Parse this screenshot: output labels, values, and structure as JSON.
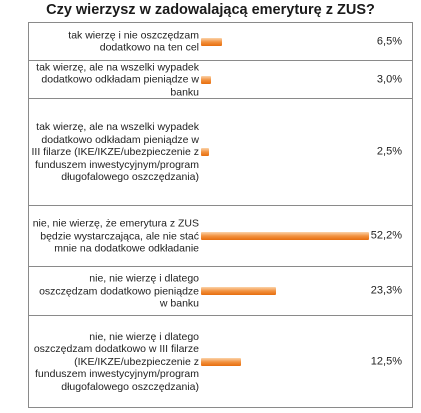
{
  "chart_data": {
    "type": "bar",
    "orientation": "horizontal",
    "title": "Czy wierzysz w zadowalającą emeryturę z ZUS?",
    "unit": "%",
    "xlim": [
      0,
      60
    ],
    "grid": false,
    "categories": [
      "tak wierzę i nie oszczędzam dodatkowo na ten cel",
      "tak wierzę, ale na wszelki wypadek dodatkowo odkładam pieniądze w banku",
      "tak wierzę, ale na wszelki wypadek dodatkowo odkładam pieniądze w III filarze (IKE/IKZE/ubezpieczenie z funduszem inwestycyjnym/program długofalowego oszczędzania)",
      "nie, nie wierzę, że emerytura z ZUS będzie wystarczająca, ale nie stać mnie na dodatkowe odkładanie",
      "nie, nie wierzę i dlatego oszczędzam dodatkowo pieniądze w banku",
      "nie, nie wierzę i dlatego oszczędzam dodatkowo w III filarze (IKE/IKZE/ubezpieczenie z funduszem inwestycyjnym/program długofalowego oszczędzania)"
    ],
    "values": [
      6.5,
      3.0,
      2.5,
      52.2,
      23.3,
      12.5
    ],
    "value_labels": [
      "6,5%",
      "3,0%",
      "2,5%",
      "52,2%",
      "23,3%",
      "12,5%"
    ],
    "bar_color": "#f08a30"
  }
}
